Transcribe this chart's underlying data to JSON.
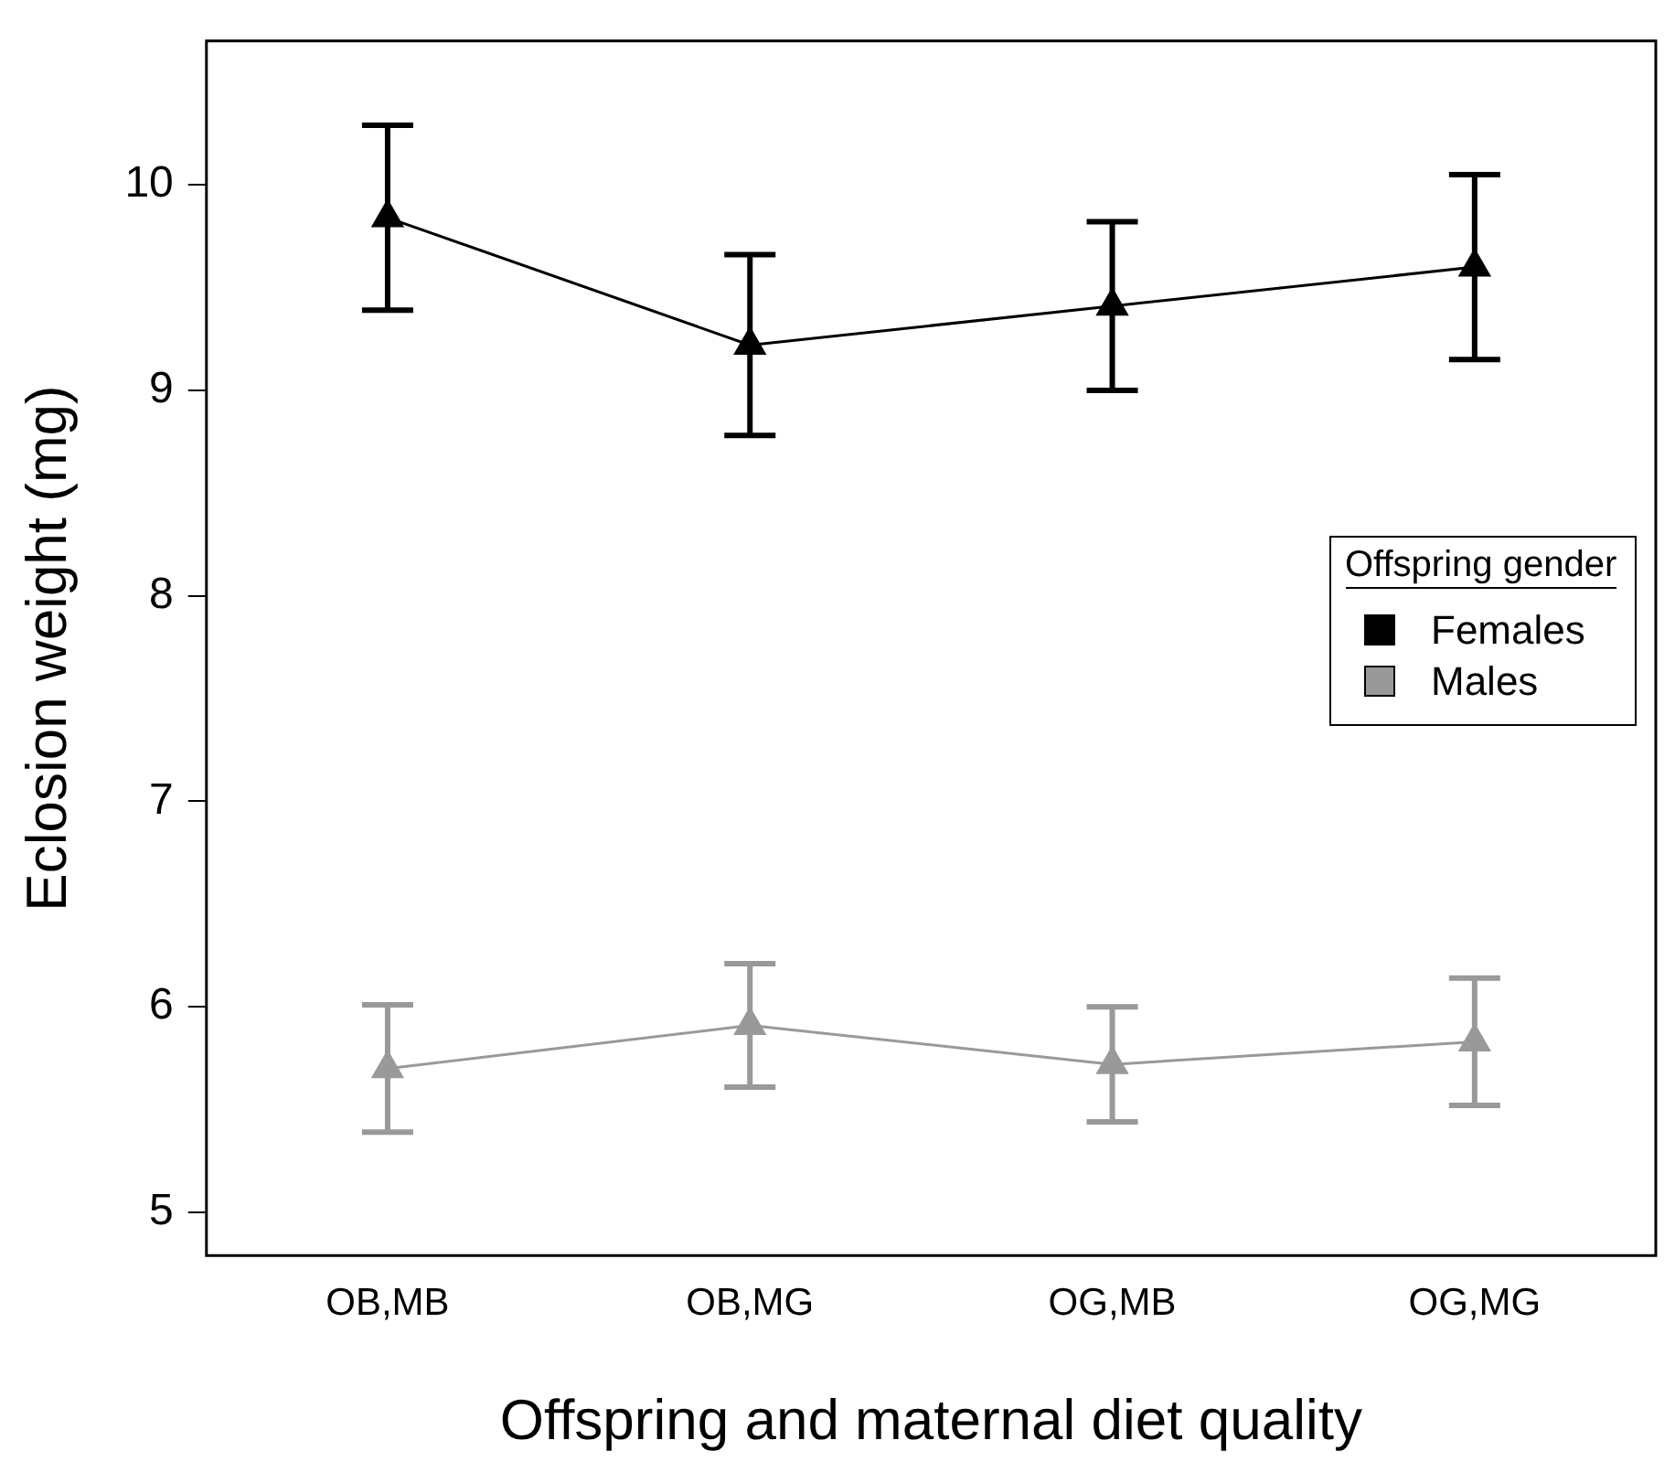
{
  "chart_data": {
    "type": "line",
    "xlabel": "Offspring and maternal diet quality",
    "ylabel": "Eclosion weight (mg)",
    "legend_title": "Offspring gender",
    "categories": [
      "OB,MB",
      "OB,MG",
      "OG,MB",
      "OG,MG"
    ],
    "series": [
      {
        "name": "Females",
        "color": "#000000",
        "values": [
          9.84,
          9.22,
          9.41,
          9.6
        ],
        "errors": [
          0.45,
          0.44,
          0.41,
          0.45
        ]
      },
      {
        "name": "Males",
        "color": "#999999",
        "values": [
          5.7,
          5.91,
          5.72,
          5.83
        ],
        "errors": [
          0.31,
          0.3,
          0.28,
          0.31
        ]
      }
    ],
    "ylim": [
      4.79,
      10.7
    ],
    "yticks": [
      5,
      6,
      7,
      8,
      9,
      10
    ],
    "grid": false,
    "legend": "right",
    "marker": "triangle",
    "line_style": "solid"
  }
}
